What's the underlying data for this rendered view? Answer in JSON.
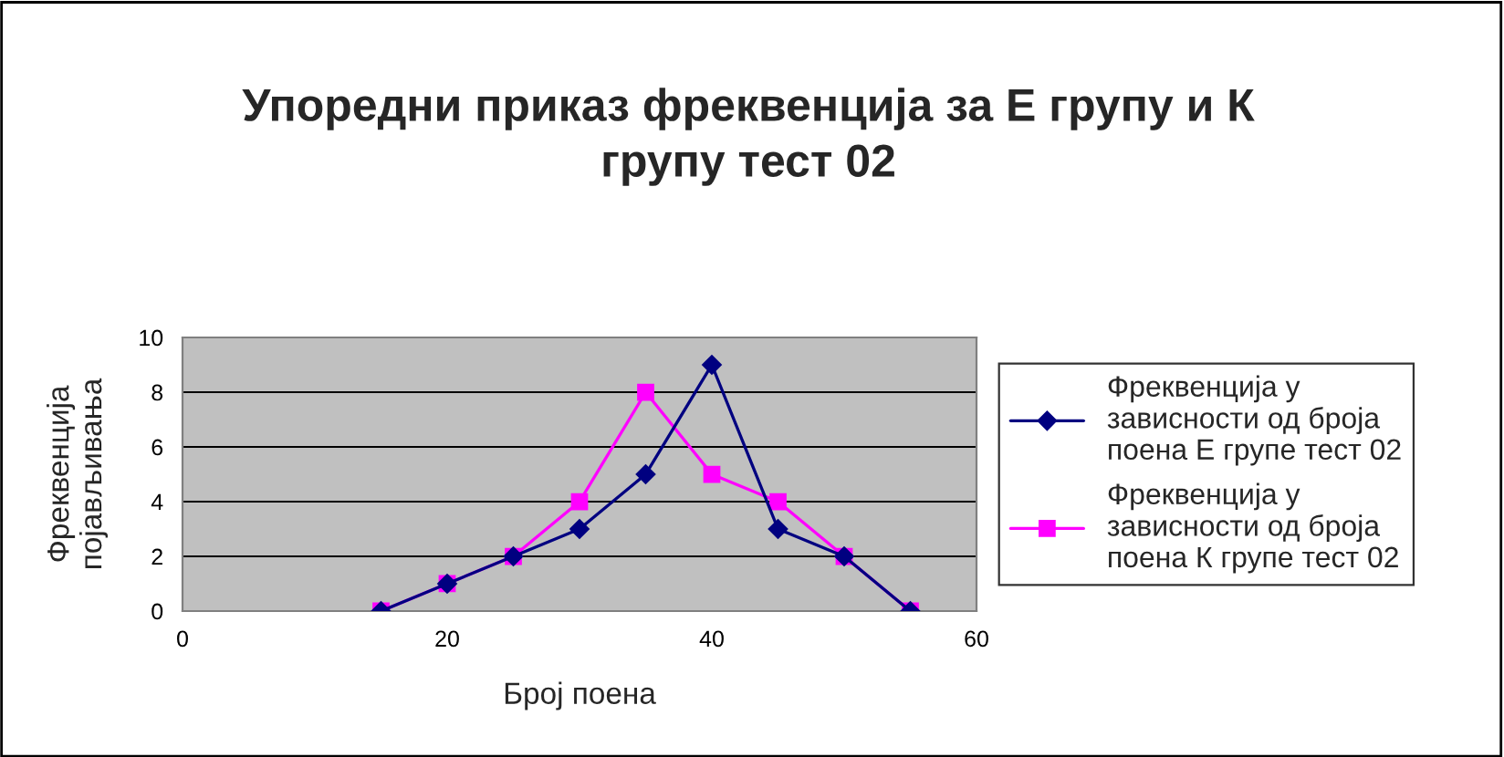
{
  "chart_data": {
    "type": "line",
    "title": "Упоредни приказ фреквенција за Е групу и К групу тест 02",
    "xlabel": "Број поена",
    "ylabel": "Фреквенција појављивања",
    "x": [
      15,
      20,
      25,
      30,
      35,
      40,
      45,
      50,
      55
    ],
    "series": [
      {
        "name": "Фреквенција у зависности од броја поена Е групе тест 02",
        "color": "#000080",
        "marker": "diamond",
        "values": [
          0,
          1,
          2,
          3,
          5,
          9,
          3,
          2,
          0
        ]
      },
      {
        "name": "Фреквенција у зависности од броја поена К групе тест 02",
        "color": "#ff00ff",
        "marker": "square",
        "values": [
          0,
          1,
          2,
          4,
          8,
          5,
          4,
          2,
          0
        ]
      }
    ],
    "xlim": [
      0,
      60
    ],
    "xticks": [
      0,
      20,
      40,
      60
    ],
    "ylim": [
      0,
      10
    ],
    "yticks": [
      0,
      2,
      4,
      6,
      8,
      10
    ],
    "grid": "y",
    "legend": "right",
    "line_style": "solid"
  }
}
